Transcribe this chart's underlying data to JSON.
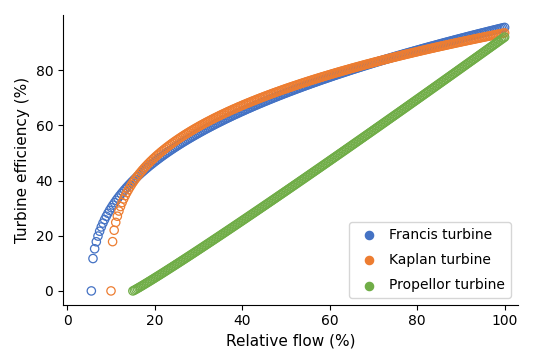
{
  "title": "",
  "xlabel": "Relative flow (%)",
  "ylabel": "Turbine efficiency (%)",
  "xlim": [
    -1,
    103
  ],
  "ylim": [
    -5,
    100
  ],
  "xticks": [
    0,
    20,
    40,
    60,
    80,
    100
  ],
  "yticks": [
    0,
    20,
    40,
    60,
    80
  ],
  "series": [
    {
      "name": "Francis turbine",
      "color": "#4472C4",
      "flow_min": 5.5,
      "flow_max": 100,
      "eta_max": 95.5,
      "flow_opt": 55,
      "power": 0.38,
      "n_points": 250
    },
    {
      "name": "Kaplan turbine",
      "color": "#ED7D31",
      "flow_min": 10.0,
      "flow_max": 100,
      "eta_max": 93.5,
      "flow_opt": 40,
      "power": 0.3,
      "n_points": 250
    },
    {
      "name": "Propellor turbine",
      "color": "#70AD47",
      "flow_min": 15.0,
      "flow_max": 100,
      "eta_max": 92.0,
      "flow_opt": 100,
      "power": 1.05,
      "n_points": 250
    }
  ],
  "legend_loc": "lower right",
  "marker_size": 6,
  "figsize": [
    5.34,
    3.64
  ],
  "dpi": 100
}
